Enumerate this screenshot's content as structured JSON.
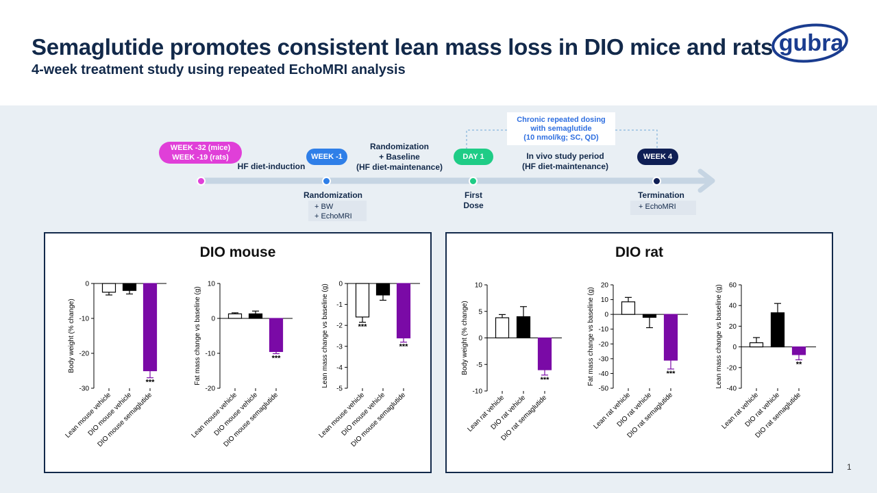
{
  "header": {
    "title": "Semaglutide promotes consistent lean mass loss in DIO mice and rats",
    "subtitle": "4-week treatment study using repeated EchoMRI analysis",
    "logo_text": "gubra"
  },
  "colors": {
    "navy": "#12294a",
    "magenta": "#e03fd8",
    "blue": "#2f7fe8",
    "green": "#1fcc86",
    "dark_navy": "#0f1f55",
    "purple": "#7a0aa6",
    "arrow": "#c6d5e3"
  },
  "timeline": {
    "start_pill_line1": "WEEK -32 (mice)",
    "start_pill_line2": "WEEK -19 (rats)",
    "phase1_label": "HF diet-induction",
    "week_minus1_pill": "WEEK -1",
    "randomization_label_line1": "Randomization",
    "randomization_label_line2": "+ Baseline",
    "randomization_label_line3": "(HF diet-maintenance)",
    "day1_pill": "DAY 1",
    "invivo_line1": "In vivo study period",
    "invivo_line2": "(HF diet-maintenance)",
    "week4_pill": "WEEK 4",
    "dosing_line1": "Chronic repeated dosing",
    "dosing_line2": "with semaglutide",
    "dosing_line3": "(10 nmol/kg; SC, QD)",
    "randomization_title": "Randomization",
    "randomization_items": [
      "+  BW",
      "+  EchoMRI"
    ],
    "first_dose_line1": "First",
    "first_dose_line2": "Dose",
    "termination_title": "Termination",
    "termination_items": [
      "+  EchoMRI"
    ]
  },
  "panels": [
    {
      "title": "DIO mouse"
    },
    {
      "title": "DIO rat"
    }
  ],
  "chart_data": [
    {
      "type": "bar",
      "panel": 0,
      "ylabel": "Body weight (% change)",
      "categories": [
        "Lean mouse vehicle",
        "DIO mouse vehicle",
        "DIO mouse semaglutide"
      ],
      "values": [
        -2.5,
        -2.0,
        -25.0
      ],
      "errors": [
        0.8,
        1.0,
        2.0
      ],
      "significance": [
        "",
        "",
        "***"
      ],
      "fills": [
        "#ffffff",
        "#000000",
        "#7a0aa6"
      ],
      "ylim": [
        -30,
        0
      ],
      "yticks": [
        0,
        -10,
        -20,
        -30
      ],
      "ytick_labels": [
        "0",
        "-10",
        "-20",
        "-30"
      ]
    },
    {
      "type": "bar",
      "panel": 0,
      "ylabel": "Fat mass change vs baseline (g)",
      "categories": [
        "Lean mouse vehicle",
        "DIO mouse vehicle",
        "DIO mouse semaglutide"
      ],
      "values": [
        1.3,
        1.3,
        -9.5
      ],
      "errors": [
        0.3,
        0.8,
        0.6
      ],
      "significance": [
        "",
        "",
        "***"
      ],
      "fills": [
        "#ffffff",
        "#000000",
        "#7a0aa6"
      ],
      "ylim": [
        -20,
        10
      ],
      "yticks": [
        10,
        0,
        -10,
        -20
      ],
      "ytick_labels": [
        "10",
        "0",
        "-10",
        "-20"
      ]
    },
    {
      "type": "bar",
      "panel": 0,
      "ylabel": "Lean mass change vs baseline (g)",
      "categories": [
        "Lean mouse vehicle",
        "DIO mouse vehicle",
        "DIO mouse semaglutide"
      ],
      "values": [
        -1.6,
        -0.55,
        -2.6
      ],
      "errors": [
        0.25,
        0.25,
        0.2
      ],
      "significance": [
        "***",
        "",
        "***"
      ],
      "fills": [
        "#ffffff",
        "#000000",
        "#7a0aa6"
      ],
      "ylim": [
        -5,
        0
      ],
      "yticks": [
        0,
        -1,
        -2,
        -3,
        -4,
        -5
      ],
      "ytick_labels": [
        "0",
        "-1",
        "-2",
        "-3",
        "-4",
        "-5"
      ]
    },
    {
      "type": "bar",
      "panel": 1,
      "ylabel": "Body weight (% change)",
      "categories": [
        "Lean rat vehicle",
        "DIO rat vehicle",
        "DIO rat semaglutide"
      ],
      "values": [
        3.8,
        4.0,
        -6.0
      ],
      "errors": [
        0.6,
        1.9,
        1.0
      ],
      "significance": [
        "",
        "",
        "***"
      ],
      "fills": [
        "#ffffff",
        "#000000",
        "#7a0aa6"
      ],
      "ylim": [
        -10,
        10
      ],
      "yticks": [
        10,
        5,
        0,
        -5,
        -10
      ],
      "ytick_labels": [
        "10",
        "5",
        "0",
        "-5",
        "-10"
      ]
    },
    {
      "type": "bar",
      "panel": 1,
      "ylabel": "Fat mass change vs baseline (g)",
      "categories": [
        "Lean rat vehicle",
        "DIO rat vehicle",
        "DIO rat semaglutide"
      ],
      "values": [
        8.5,
        -2.0,
        -31.0
      ],
      "errors": [
        3.0,
        7.0,
        6.0
      ],
      "significance": [
        "",
        "",
        "***"
      ],
      "fills": [
        "#ffffff",
        "#000000",
        "#7a0aa6"
      ],
      "ylim": [
        -50,
        20
      ],
      "yticks": [
        20,
        10,
        0,
        -10,
        -20,
        -30,
        -40,
        -50
      ],
      "ytick_labels": [
        "20",
        "10",
        "0",
        "-10",
        "-20",
        "-30",
        "-40",
        "-50"
      ]
    },
    {
      "type": "bar",
      "panel": 1,
      "ylabel": "Lean mass change vs baseline (g)",
      "categories": [
        "Lean rat vehicle",
        "DIO rat vehicle",
        "DIO rat semaglutide"
      ],
      "values": [
        4.0,
        33.0,
        -7.5
      ],
      "errors": [
        5.0,
        9.0,
        5.0
      ],
      "significance": [
        "",
        "",
        "**"
      ],
      "fills": [
        "#ffffff",
        "#000000",
        "#7a0aa6"
      ],
      "ylim": [
        -40,
        60
      ],
      "yticks": [
        60,
        40,
        20,
        0,
        -20,
        -40
      ],
      "ytick_labels": [
        "60",
        "40",
        "20",
        "0",
        "-20",
        "-40"
      ]
    }
  ],
  "page_number": "1"
}
